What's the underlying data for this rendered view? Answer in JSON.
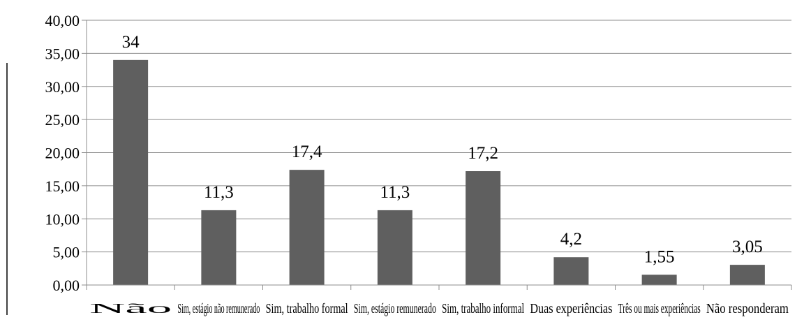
{
  "chart_data": {
    "type": "bar",
    "categories": [
      "Não",
      "Sim, estágio não remunerado",
      "Sim, trabalho formal",
      "Sim, estágio remunerado",
      "Sim, trabalho informal",
      "Duas experiências",
      "Três ou mais experiências",
      "Não responderam"
    ],
    "values": [
      34,
      11.3,
      17.4,
      11.3,
      17.2,
      4.2,
      1.55,
      3.05
    ],
    "data_labels": [
      "34",
      "11,3",
      "17,4",
      "11,3",
      "17,2",
      "4,2",
      "1,55",
      "3,05"
    ],
    "y_ticks": [
      "0,00",
      "5,00",
      "10,00",
      "15,00",
      "20,00",
      "25,00",
      "30,00",
      "35,00",
      "40,00"
    ],
    "ylim": [
      0,
      40
    ],
    "y_step": 5,
    "grid": true,
    "bar_color": "#5f5f5f",
    "grid_color": "#8c8c8c",
    "title": "",
    "xlabel": "",
    "ylabel": ""
  }
}
